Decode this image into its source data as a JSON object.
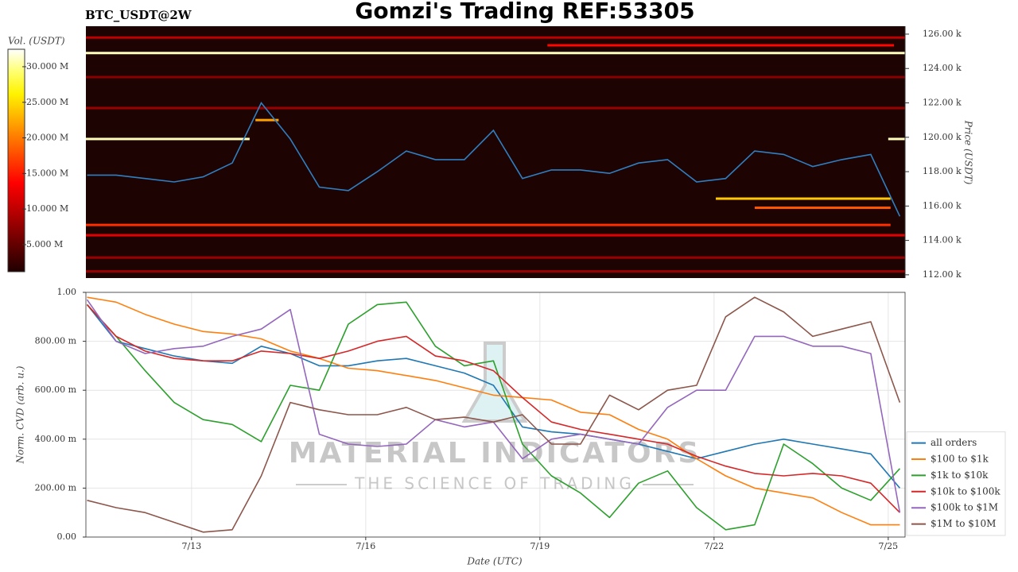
{
  "chart_data": [
    {
      "type": "heatmap",
      "title": "Gomzi's Trading REF:53305",
      "subtitle": "BTC_USDT@2W",
      "ylabel": "Price (USDT)",
      "colorbar_label": "Vol. (USDT)",
      "x": [
        11.2,
        11.7,
        12.2,
        12.7,
        13.2,
        13.7,
        14.2,
        14.7,
        15.2,
        15.7,
        16.2,
        16.7,
        17.2,
        17.7,
        18.2,
        18.7,
        19.2,
        19.7,
        20.2,
        20.7,
        21.2,
        21.7,
        22.2,
        22.7,
        23.2,
        23.7,
        24.2,
        24.7,
        25.2
      ],
      "xlim": [
        11.18,
        25.29
      ],
      "ylim": [
        111810,
        126460
      ],
      "yticks": [
        {
          "value": 112000,
          "label": "112.00 k"
        },
        {
          "value": 114000,
          "label": "114.00 k"
        },
        {
          "value": 116000,
          "label": "116.00 k"
        },
        {
          "value": 118000,
          "label": "118.00 k"
        },
        {
          "value": 120000,
          "label": "120.00 k"
        },
        {
          "value": 122000,
          "label": "122.00 k"
        },
        {
          "value": 124000,
          "label": "124.00 k"
        },
        {
          "value": 126000,
          "label": "126.00 k"
        }
      ],
      "zlim": [
        1200000,
        32450000
      ],
      "zticks": [
        {
          "value": 5000000,
          "label": "5.000 M"
        },
        {
          "value": 10000000,
          "label": "10.000 M"
        },
        {
          "value": 15000000,
          "label": "15.000 M"
        },
        {
          "value": 20000000,
          "label": "20.000 M"
        },
        {
          "value": 25000000,
          "label": "25.000 M"
        },
        {
          "value": 30000000,
          "label": "30.000 M"
        }
      ],
      "background": "#1e0303",
      "bands": [
        {
          "price": 125800,
          "start": 11.18,
          "end": 25.29,
          "volume": 10000000
        },
        {
          "price": 125350,
          "start": 19.13,
          "end": 25.1,
          "volume": 14000000
        },
        {
          "price": 124900,
          "start": 11.18,
          "end": 25.29,
          "volume": 31000000
        },
        {
          "price": 123500,
          "start": 11.18,
          "end": 25.29,
          "volume": 7000000
        },
        {
          "price": 121700,
          "start": 11.18,
          "end": 25.29,
          "volume": 8000000
        },
        {
          "price": 121000,
          "start": 14.1,
          "end": 14.5,
          "volume": 22000000
        },
        {
          "price": 119900,
          "start": 11.18,
          "end": 14.0,
          "volume": 31000000
        },
        {
          "price": 119900,
          "start": 25.0,
          "end": 25.29,
          "volume": 31000000
        },
        {
          "price": 116430,
          "start": 22.03,
          "end": 25.04,
          "volume": 24000000
        },
        {
          "price": 115900,
          "start": 22.7,
          "end": 25.04,
          "volume": 18000000
        },
        {
          "price": 114900,
          "start": 11.18,
          "end": 25.04,
          "volume": 16000000
        },
        {
          "price": 114300,
          "start": 11.18,
          "end": 25.29,
          "volume": 12000000
        },
        {
          "price": 113000,
          "start": 11.18,
          "end": 25.29,
          "volume": 8000000
        },
        {
          "price": 112200,
          "start": 11.18,
          "end": 25.29,
          "volume": 8000000
        }
      ],
      "series": [
        {
          "color": "#2f7fc1",
          "values": [
            117800,
            117800,
            117600,
            117400,
            117700,
            118500,
            122000,
            119900,
            117100,
            116900,
            118000,
            119200,
            118700,
            118700,
            120400,
            117600,
            118100,
            118100,
            117900,
            118500,
            118700,
            117400,
            117600,
            119200,
            119000,
            118300,
            118700,
            119000,
            115400
          ]
        }
      ]
    },
    {
      "type": "line",
      "xlabel": "Date (UTC)",
      "ylabel": "Norm. CVD (arb. u.)",
      "x": [
        11.2,
        11.7,
        12.2,
        12.7,
        13.2,
        13.7,
        14.2,
        14.7,
        15.2,
        15.7,
        16.2,
        16.7,
        17.2,
        17.7,
        18.2,
        18.7,
        19.2,
        19.7,
        20.2,
        20.7,
        21.2,
        21.7,
        22.2,
        22.7,
        23.2,
        23.7,
        24.2,
        24.7,
        25.2
      ],
      "xlim": [
        11.18,
        25.29
      ],
      "xticks": [
        {
          "value": 13,
          "label": "7/13"
        },
        {
          "value": 16,
          "label": "7/16"
        },
        {
          "value": 19,
          "label": "7/19"
        },
        {
          "value": 22,
          "label": "7/22"
        },
        {
          "value": 25,
          "label": "7/25"
        }
      ],
      "ylim": [
        0,
        1
      ],
      "yticks": [
        {
          "value": 0,
          "label": "0.00"
        },
        {
          "value": 0.2,
          "label": "200.00 m"
        },
        {
          "value": 0.4,
          "label": "400.00 m"
        },
        {
          "value": 0.6,
          "label": "600.00 m"
        },
        {
          "value": 0.8,
          "label": "800.00 m"
        },
        {
          "value": 1,
          "label": "1.00"
        }
      ],
      "grid": true,
      "legend": "lower-right",
      "annotations": [
        "MATERIAL INDICATORS",
        "THE SCIENCE OF TRADING"
      ],
      "series": [
        {
          "name": "all orders",
          "color": "#1f77b4",
          "values": [
            0.95,
            0.8,
            0.77,
            0.74,
            0.72,
            0.71,
            0.78,
            0.75,
            0.7,
            0.7,
            0.72,
            0.73,
            0.7,
            0.67,
            0.62,
            0.45,
            0.43,
            0.42,
            0.4,
            0.38,
            0.35,
            0.32,
            0.35,
            0.38,
            0.4,
            0.38,
            0.36,
            0.34,
            0.2
          ]
        },
        {
          "name": "$100 to $1k",
          "color": "#ff7f0e",
          "values": [
            0.98,
            0.96,
            0.91,
            0.87,
            0.84,
            0.83,
            0.81,
            0.76,
            0.73,
            0.69,
            0.68,
            0.66,
            0.64,
            0.61,
            0.58,
            0.57,
            0.56,
            0.51,
            0.5,
            0.44,
            0.4,
            0.32,
            0.25,
            0.2,
            0.18,
            0.16,
            0.1,
            0.05,
            0.05
          ]
        },
        {
          "name": "$1k to $10k",
          "color": "#2ca02c",
          "values": [
            0.95,
            0.82,
            0.68,
            0.55,
            0.48,
            0.46,
            0.39,
            0.62,
            0.6,
            0.87,
            0.95,
            0.96,
            0.78,
            0.7,
            0.72,
            0.38,
            0.25,
            0.18,
            0.08,
            0.22,
            0.27,
            0.12,
            0.03,
            0.05,
            0.38,
            0.3,
            0.2,
            0.15,
            0.28
          ]
        },
        {
          "name": "$10k to $100k",
          "color": "#d62728",
          "values": [
            0.95,
            0.82,
            0.76,
            0.73,
            0.72,
            0.72,
            0.76,
            0.75,
            0.73,
            0.76,
            0.8,
            0.82,
            0.74,
            0.72,
            0.68,
            0.57,
            0.47,
            0.44,
            0.42,
            0.4,
            0.38,
            0.33,
            0.29,
            0.26,
            0.25,
            0.26,
            0.25,
            0.22,
            0.1
          ]
        },
        {
          "name": "$100k to $1M",
          "color": "#9467bd",
          "values": [
            0.97,
            0.8,
            0.75,
            0.77,
            0.78,
            0.82,
            0.85,
            0.93,
            0.42,
            0.38,
            0.37,
            0.38,
            0.48,
            0.45,
            0.47,
            0.32,
            0.4,
            0.42,
            0.4,
            0.38,
            0.53,
            0.6,
            0.6,
            0.82,
            0.82,
            0.78,
            0.78,
            0.75,
            0.1
          ]
        },
        {
          "name": "$1M to $10M",
          "color": "#8c564b",
          "values": [
            0.15,
            0.12,
            0.1,
            0.06,
            0.02,
            0.03,
            0.25,
            0.55,
            0.52,
            0.5,
            0.5,
            0.53,
            0.48,
            0.49,
            0.47,
            0.5,
            0.38,
            0.38,
            0.58,
            0.52,
            0.6,
            0.62,
            0.9,
            0.98,
            0.92,
            0.82,
            0.85,
            0.88,
            0.55
          ]
        }
      ]
    }
  ]
}
